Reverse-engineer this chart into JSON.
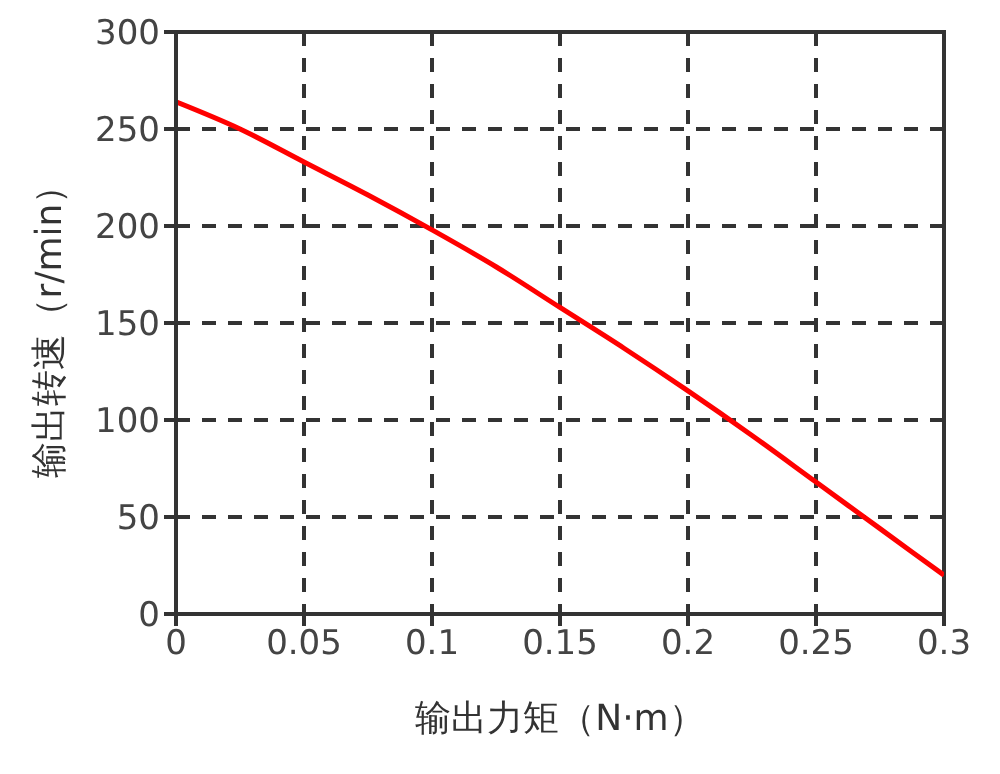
{
  "chart_data": {
    "type": "line",
    "xlabel": "输出力矩（N·m）",
    "ylabel": "输出转速（r/min）",
    "x": [
      0,
      0.025,
      0.05,
      0.075,
      0.1,
      0.125,
      0.15,
      0.175,
      0.2,
      0.225,
      0.25,
      0.275,
      0.3
    ],
    "series": [
      {
        "color": "#ff0000",
        "values": [
          264,
          250,
          233,
          216,
          198,
          179,
          158,
          137,
          115,
          92,
          68,
          44,
          20
        ]
      }
    ],
    "xlim": [
      0,
      0.3
    ],
    "xticks": [
      0,
      0.05,
      0.1,
      0.15,
      0.2,
      0.25,
      0.3
    ],
    "ylim": [
      0,
      300
    ],
    "yticks": [
      0,
      50,
      100,
      150,
      200,
      250,
      300
    ],
    "grid": true,
    "line_style": "solid",
    "marker": "none"
  }
}
